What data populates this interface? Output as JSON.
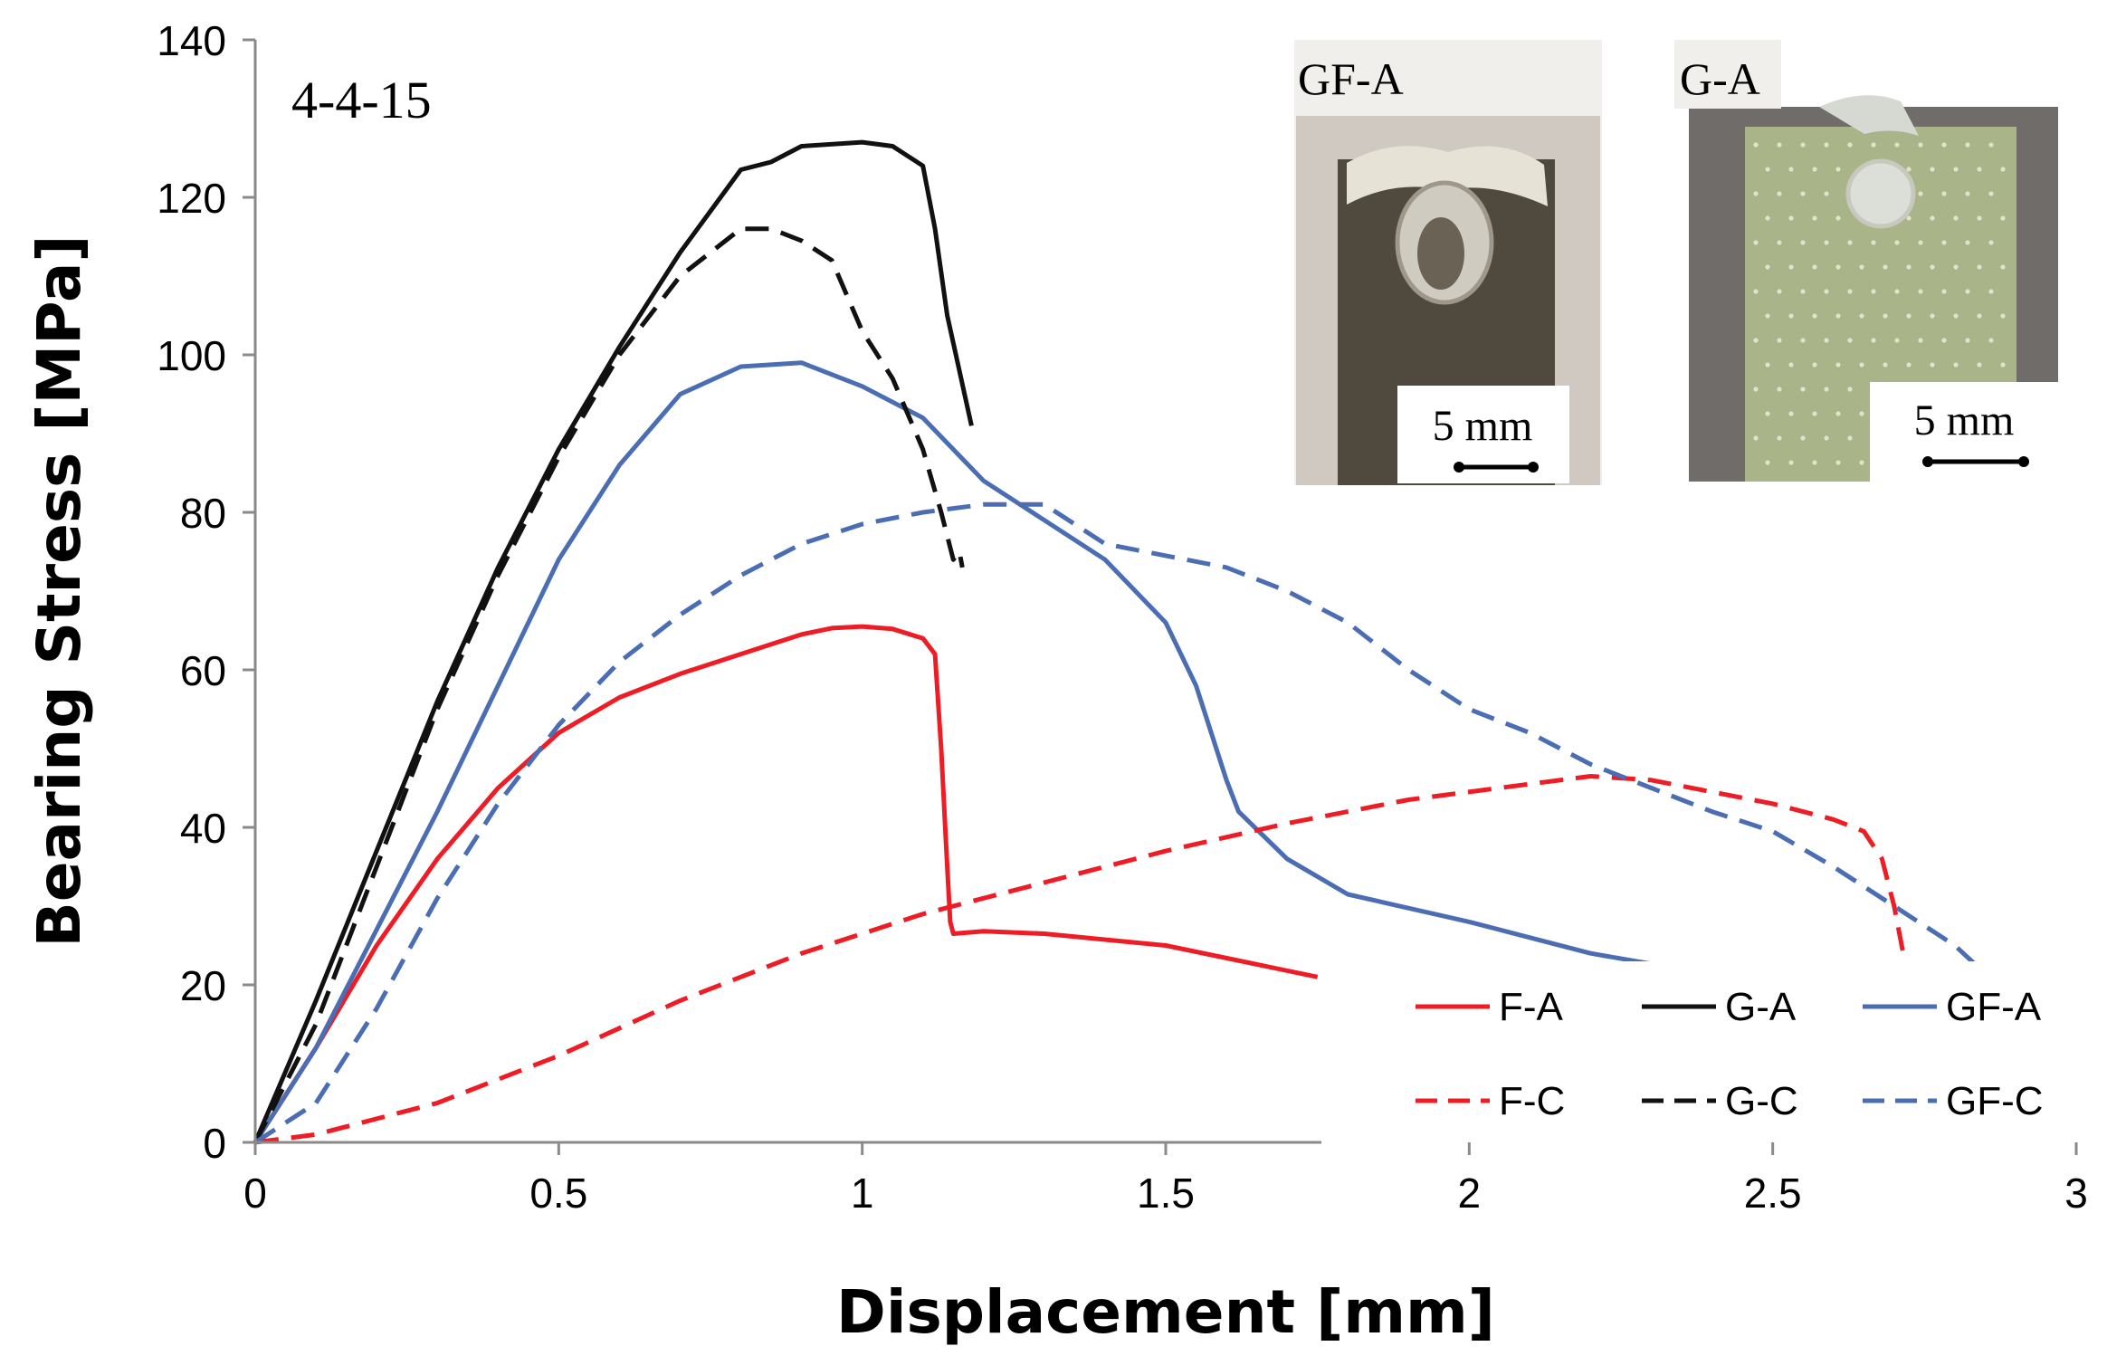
{
  "chart_data": {
    "type": "line",
    "title": "",
    "annotation": "4-4-15",
    "xlabel": "Displacement [mm]",
    "ylabel": "Bearing Stress [MPa]",
    "xlim": [
      0,
      3
    ],
    "ylim": [
      0,
      140
    ],
    "xticks": [
      "0",
      "0.5",
      "1",
      "1.5",
      "2",
      "2.5",
      "3"
    ],
    "yticks": [
      "0",
      "20",
      "40",
      "60",
      "80",
      "100",
      "120",
      "140"
    ],
    "grid": false,
    "legend_position": "bottom-right",
    "series": [
      {
        "name": "F-A",
        "color": "#ee1c24",
        "dash": "solid",
        "x": [
          0,
          0.1,
          0.2,
          0.3,
          0.4,
          0.5,
          0.6,
          0.7,
          0.8,
          0.9,
          0.95,
          1.0,
          1.05,
          1.1,
          1.12,
          1.13,
          1.14,
          1.145,
          1.15,
          1.2,
          1.3,
          1.5,
          1.75
        ],
        "y": [
          0,
          12,
          25,
          36,
          45,
          52,
          56.5,
          59.5,
          62,
          64.5,
          65.3,
          65.5,
          65.2,
          64,
          62,
          50,
          35,
          28,
          26.5,
          26.8,
          26.5,
          25,
          21
        ]
      },
      {
        "name": "G-A",
        "color": "#111111",
        "dash": "solid",
        "x": [
          0,
          0.1,
          0.2,
          0.3,
          0.4,
          0.5,
          0.6,
          0.7,
          0.8,
          0.85,
          0.9,
          1.0,
          1.05,
          1.1,
          1.12,
          1.14,
          1.16,
          1.18
        ],
        "y": [
          0,
          18,
          37,
          56,
          73,
          88,
          101,
          113,
          123.5,
          124.5,
          126.5,
          127,
          126.5,
          124,
          116,
          105,
          98,
          91
        ]
      },
      {
        "name": "GF-A",
        "color": "#4a6db3",
        "dash": "solid",
        "x": [
          0,
          0.1,
          0.2,
          0.3,
          0.4,
          0.5,
          0.6,
          0.7,
          0.8,
          0.9,
          1.0,
          1.1,
          1.2,
          1.3,
          1.4,
          1.5,
          1.55,
          1.6,
          1.62,
          1.7,
          1.8,
          2.0,
          2.1,
          2.2,
          2.35
        ],
        "y": [
          0,
          12,
          27,
          42,
          58,
          74,
          86,
          95,
          98.5,
          99,
          96,
          92,
          84,
          79,
          74,
          66,
          58,
          46,
          42,
          36,
          31.5,
          28,
          26,
          24,
          22
        ]
      },
      {
        "name": "F-C",
        "color": "#ee1c24",
        "dash": "dashed",
        "x": [
          0,
          0.1,
          0.3,
          0.5,
          0.7,
          0.9,
          1.1,
          1.3,
          1.5,
          1.7,
          1.9,
          2.1,
          2.2,
          2.3,
          2.5,
          2.6,
          2.65,
          2.68,
          2.7,
          2.72
        ],
        "y": [
          0,
          1,
          5,
          11,
          18,
          24,
          29,
          33,
          37,
          40.5,
          43.5,
          45.5,
          46.5,
          46,
          43,
          41,
          39.5,
          36,
          30,
          22
        ]
      },
      {
        "name": "G-C",
        "color": "#111111",
        "dash": "dashed",
        "x": [
          0,
          0.1,
          0.2,
          0.3,
          0.4,
          0.5,
          0.6,
          0.7,
          0.8,
          0.85,
          0.9,
          0.95,
          1.0,
          1.05,
          1.1,
          1.13,
          1.15,
          1.16,
          1.165
        ],
        "y": [
          0,
          15,
          35,
          55,
          72,
          87,
          100,
          110,
          116,
          116,
          114.5,
          112,
          103,
          97,
          88,
          80,
          74,
          75,
          73
        ]
      },
      {
        "name": "GF-C",
        "color": "#4a6db3",
        "dash": "dashed",
        "x": [
          0,
          0.1,
          0.2,
          0.3,
          0.4,
          0.5,
          0.6,
          0.7,
          0.8,
          0.9,
          1.0,
          1.1,
          1.2,
          1.3,
          1.4,
          1.5,
          1.6,
          1.7,
          1.8,
          1.9,
          2.0,
          2.1,
          2.2,
          2.3,
          2.4,
          2.5,
          2.6,
          2.7,
          2.8,
          2.87
        ],
        "y": [
          0,
          5,
          17,
          31,
          43,
          53,
          61,
          67,
          72,
          76,
          78.5,
          80,
          81,
          81,
          76,
          74.5,
          73,
          70,
          66,
          60,
          55,
          52,
          48,
          45,
          42,
          39.5,
          35,
          30,
          25,
          20
        ]
      }
    ]
  },
  "insets": [
    {
      "label": "GF-A",
      "scale_label": "5 mm"
    },
    {
      "label": "G-A",
      "scale_label": "5 mm"
    }
  ]
}
